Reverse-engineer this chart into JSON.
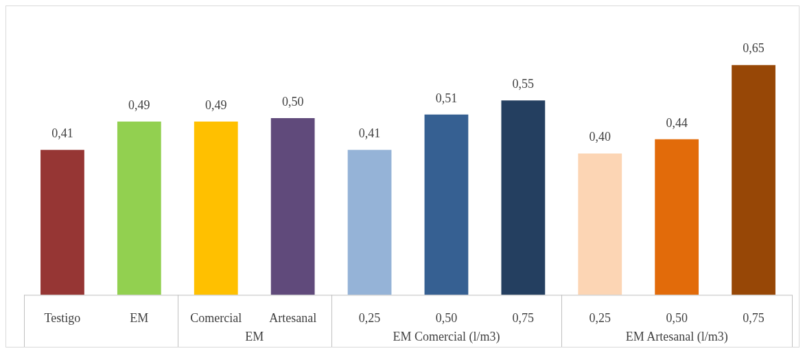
{
  "chart_data": {
    "type": "bar",
    "categories": [
      "Testigo",
      "EM",
      "Comercial",
      "Artesanal",
      "0,25",
      "0,50",
      "0,75",
      "0,25",
      "0,50",
      "0,75"
    ],
    "values": [
      0.41,
      0.49,
      0.49,
      0.5,
      0.41,
      0.51,
      0.55,
      0.4,
      0.44,
      0.65
    ],
    "value_labels": [
      "0,41",
      "0,49",
      "0,49",
      "0,50",
      "0,41",
      "0,51",
      "0,55",
      "0,40",
      "0,44",
      "0,65"
    ],
    "colors": [
      "#963634",
      "#92d050",
      "#ffc000",
      "#604a7b",
      "#95b3d7",
      "#366092",
      "#243f60",
      "#fcd5b4",
      "#e26b0a",
      "#974706"
    ],
    "annotations": [
      "EM",
      "EM Comercial (l/m3)",
      "EM Artesanal (l/m3)"
    ]
  }
}
